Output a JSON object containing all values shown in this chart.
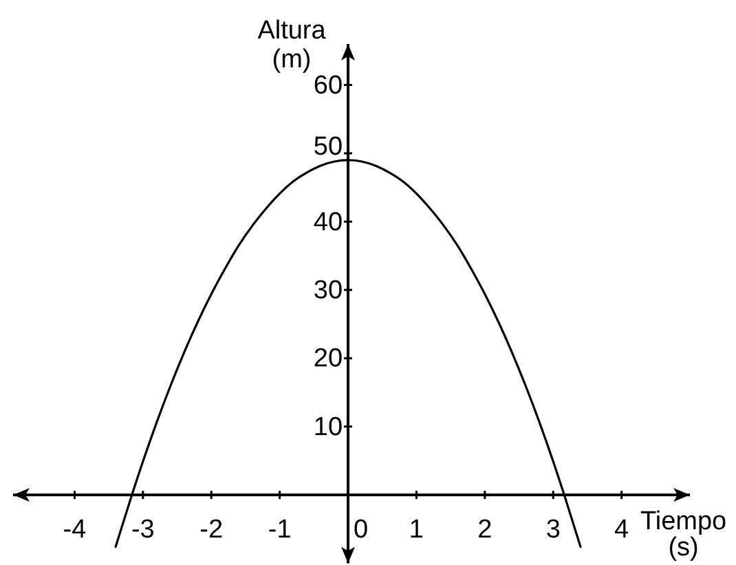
{
  "chart_data": {
    "type": "line",
    "xlabel": "Tiempo\n(s)",
    "ylabel": "Altura\n(m)",
    "x": [
      -3.4,
      -3.2,
      -3.0,
      -2.8,
      -2.6,
      -2.4,
      -2.2,
      -2.0,
      -1.8,
      -1.6,
      -1.4,
      -1.2,
      -1.0,
      -0.8,
      -0.6,
      -0.4,
      -0.2,
      0,
      0.2,
      0.4,
      0.6,
      0.8,
      1.0,
      1.2,
      1.4,
      1.6,
      1.8,
      2.0,
      2.2,
      2.4,
      2.6,
      2.8,
      3.0,
      3.2,
      3.4
    ],
    "series": [
      {
        "color": "#000000",
        "values": [
          -7.6,
          -1.2,
          4.9,
          10.6,
          15.9,
          20.8,
          25.3,
          29.4,
          33.1,
          36.5,
          39.4,
          41.9,
          44.1,
          45.9,
          47.2,
          48.2,
          48.8,
          49,
          48.8,
          48.2,
          47.2,
          45.9,
          44.1,
          41.9,
          39.4,
          36.5,
          33.1,
          29.4,
          25.3,
          20.8,
          15.9,
          10.6,
          4.9,
          -1.2,
          -7.6
        ]
      }
    ],
    "xlim": [
      -4.9,
      5.0
    ],
    "ylim": [
      -10,
      66
    ],
    "xticks": [
      -4,
      -3,
      -2,
      -1,
      0,
      1,
      2,
      3,
      4
    ],
    "yticks": [
      10,
      20,
      30,
      40,
      50,
      60
    ],
    "grid": false,
    "marker": "none",
    "line_style": "solid"
  }
}
